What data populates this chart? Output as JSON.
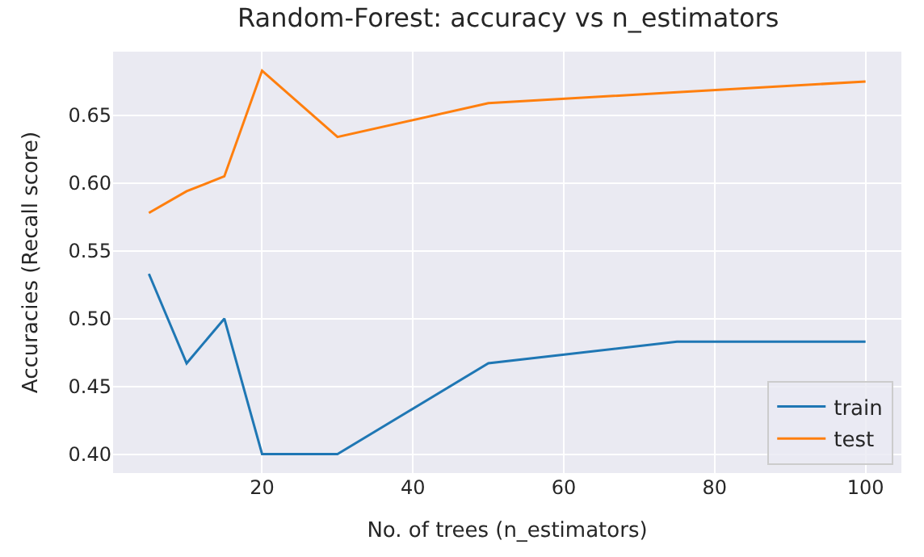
{
  "chart_data": {
    "type": "line",
    "title": "Random-Forest: accuracy vs n_estimators",
    "xlabel": "No. of trees (n_estimators)",
    "ylabel": "Accuracies (Recall score)",
    "x": [
      5,
      10,
      15,
      20,
      30,
      50,
      75,
      100
    ],
    "series": [
      {
        "name": "train",
        "color": "#1f77b4",
        "values": [
          0.533,
          0.467,
          0.5,
          0.4,
          0.4,
          0.467,
          0.483,
          0.483
        ]
      },
      {
        "name": "test",
        "color": "#ff7f0e",
        "values": [
          0.578,
          0.594,
          0.605,
          0.683,
          0.634,
          0.659,
          0.667,
          0.675
        ]
      }
    ],
    "xlim": [
      0.25,
      104.75
    ],
    "xticks": [
      20,
      40,
      60,
      80,
      100
    ],
    "ylim": [
      0.386,
      0.697
    ],
    "yticks": [
      {
        "value": 0.4,
        "label": "0.40"
      },
      {
        "value": 0.45,
        "label": "0.45"
      },
      {
        "value": 0.5,
        "label": "0.50"
      },
      {
        "value": 0.55,
        "label": "0.55"
      },
      {
        "value": 0.6,
        "label": "0.60"
      },
      {
        "value": 0.65,
        "label": "0.65"
      }
    ],
    "grid": true,
    "legend": "bottom right",
    "marker": "none",
    "line_style": "solid"
  }
}
